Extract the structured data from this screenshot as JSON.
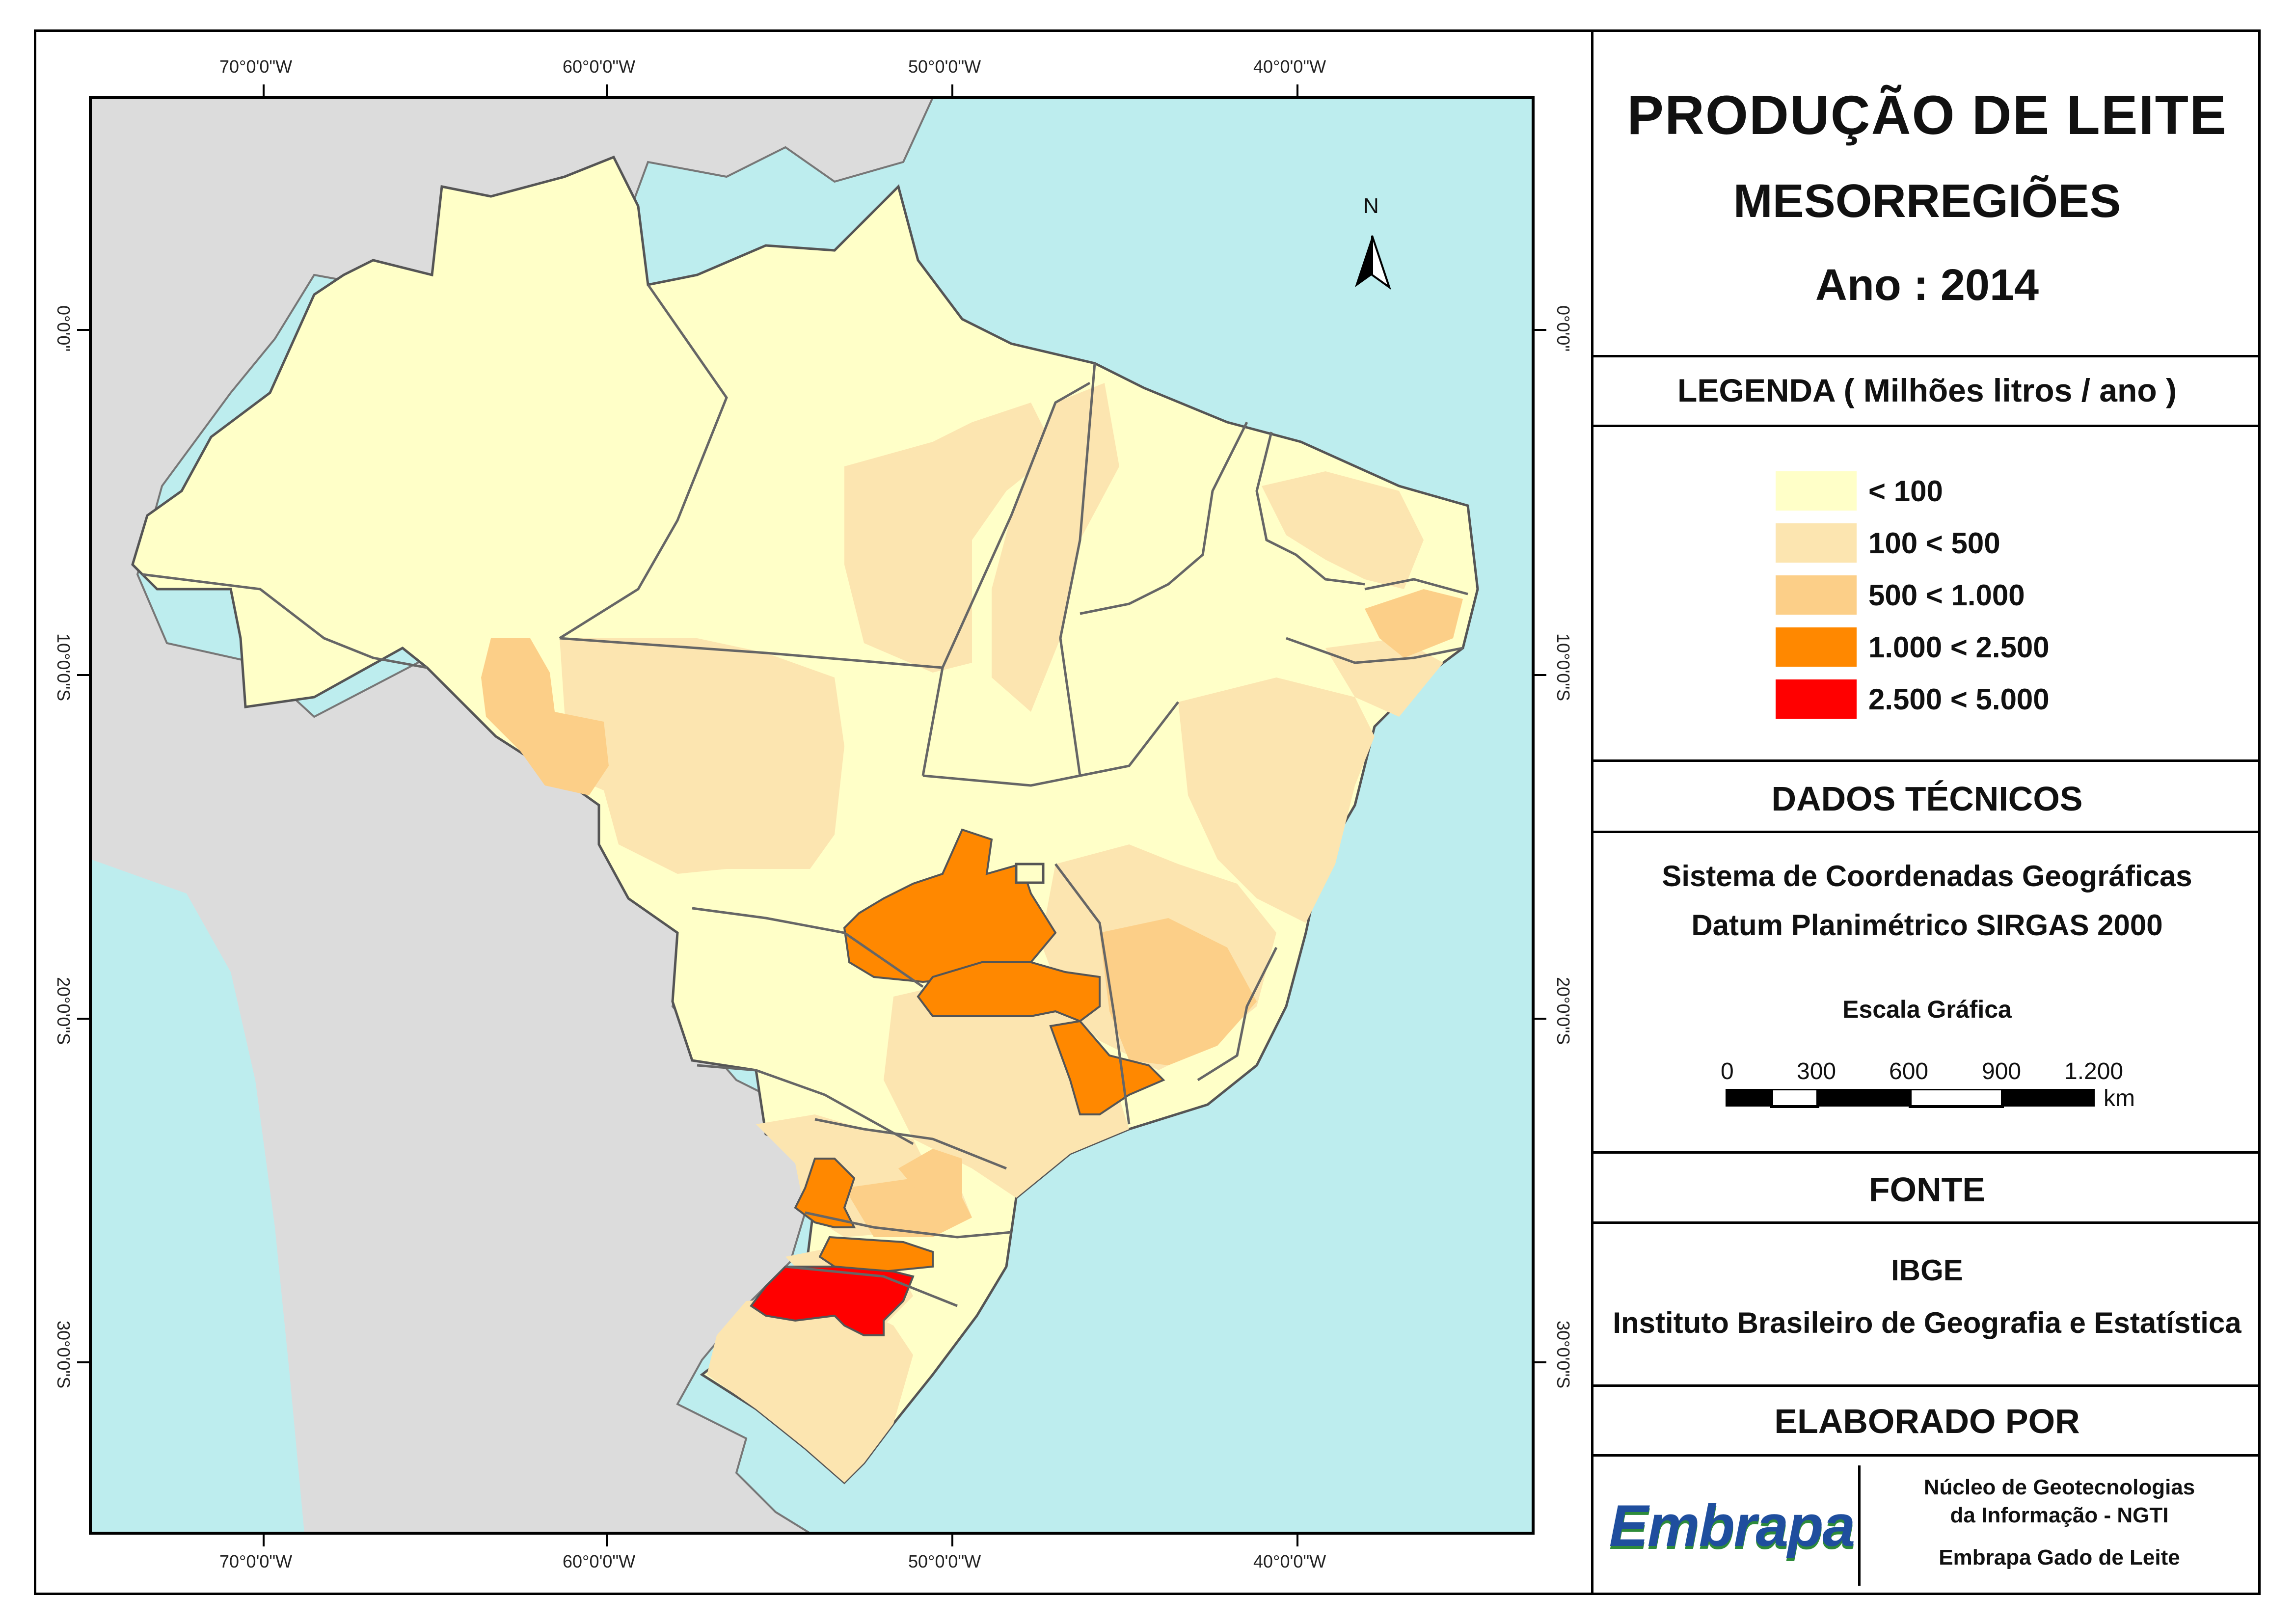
{
  "title": {
    "line1": "PRODUÇÃO DE LEITE",
    "line2": "MESORREGIÕES",
    "line3": "Ano : 2014"
  },
  "legend": {
    "heading": "LEGENDA ( Milhões litros / ano )",
    "items": [
      {
        "label": "< 100",
        "color": "#FFFFC8"
      },
      {
        "label": "100 < 500",
        "color": "#FCE5B0"
      },
      {
        "label": "500 < 1.000",
        "color": "#FCCF88"
      },
      {
        "label": "1.000 < 2.500",
        "color": "#FF8800"
      },
      {
        "label": "2.500 < 5.000",
        "color": "#FF0000"
      }
    ]
  },
  "dados_tecnicos": {
    "heading": "DADOS TÉCNICOS",
    "line1": "Sistema de Coordenadas Geográficas",
    "line2": "Datum Planimétrico SIRGAS 2000",
    "scale_title": "Escala Gráfica",
    "scale_ticks": [
      "0",
      "300",
      "600",
      "900",
      "1.200"
    ],
    "scale_unit": "km"
  },
  "fonte": {
    "heading": "FONTE",
    "line1": "IBGE",
    "line2": "Instituto Brasileiro de Geografia e Estatística"
  },
  "elaborado": {
    "heading": "ELABORADO POR",
    "logo_text": "Embrapa",
    "line1": "Núcleo de Geotecnologias",
    "line2": "da Informação - NGTI",
    "line3": "Embrapa Gado de Leite"
  },
  "graticule": {
    "lon_labels": [
      "70°0'0\"W",
      "60°0'0\"W",
      "50°0'0\"W",
      "40°0'0\"W"
    ],
    "lat_labels": [
      "0°0'0\"",
      "10°0'0\"S",
      "20°0'0\"S",
      "30°0'0\"S"
    ]
  },
  "north_arrow": "N",
  "colors": {
    "ocean": "#BDEDEE",
    "neighbor": "#DCDCDC",
    "border": "#555555"
  }
}
